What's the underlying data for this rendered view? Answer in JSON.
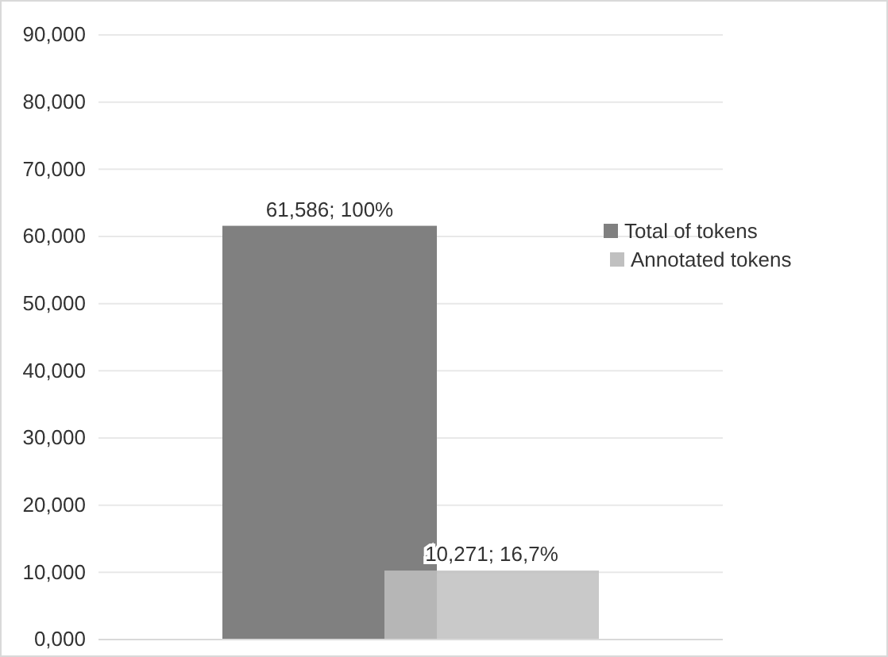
{
  "chart_data": {
    "type": "bar",
    "categories": [
      null
    ],
    "series": [
      {
        "name": "Total of tokens",
        "color": "#808080",
        "values": [
          61.586
        ],
        "value_labels": [
          "61,586; 100%"
        ]
      },
      {
        "name": "Annotated tokens",
        "color": "#c0c0c0",
        "values": [
          10.271
        ],
        "value_labels": [
          "10,271; 16,7%"
        ]
      }
    ],
    "ylim": [
      0,
      90
    ],
    "yticks": [
      {
        "value": 0,
        "label": "0,000"
      },
      {
        "value": 10,
        "label": "10,000"
      },
      {
        "value": 20,
        "label": "20,000"
      },
      {
        "value": 30,
        "label": "30,000"
      },
      {
        "value": 40,
        "label": "40,000"
      },
      {
        "value": 50,
        "label": "50,000"
      },
      {
        "value": 60,
        "label": "60,000"
      },
      {
        "value": 70,
        "label": "70,000"
      },
      {
        "value": 80,
        "label": "80,000"
      },
      {
        "value": 90,
        "label": "90,000"
      }
    ],
    "grid": "y",
    "legend": "right"
  }
}
